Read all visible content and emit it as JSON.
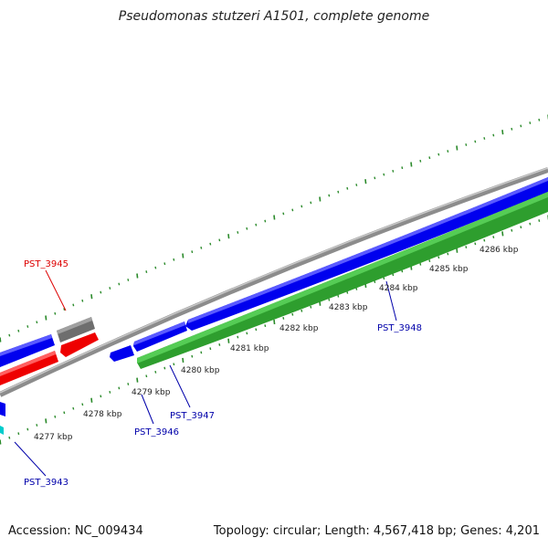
{
  "header": {
    "title": "Pseudomonas stutzeri A1501, complete genome"
  },
  "footer": {
    "accession": "Accession: NC_009434",
    "summary": "Topology: circular; Length: 4,567,418 bp; Genes: 4,201"
  },
  "ruler": {
    "unit": "kbp",
    "labels": [
      "4277 kbp",
      "4278 kbp",
      "4279 kbp",
      "4280 kbp",
      "4281 kbp",
      "4282 kbp",
      "4283 kbp",
      "4284 kbp",
      "4285 kbp",
      "4286 kbp"
    ]
  },
  "gene_labels": [
    {
      "id": "PST_3945",
      "color": "#dd0000"
    },
    {
      "id": "PST_3943",
      "color": "#0000aa"
    },
    {
      "id": "PST_3946",
      "color": "#0000aa"
    },
    {
      "id": "PST_3947",
      "color": "#0000aa"
    },
    {
      "id": "PST_3948",
      "color": "#0000aa"
    }
  ],
  "colors": {
    "forward_cds": "#0000ee",
    "reverse_cds": "#ee0000",
    "gray_feature": "#707070",
    "green_feature": "#33aa33",
    "cyan_feature": "#00cccc",
    "backbone": "#909090",
    "tick": "#2a8a2a"
  }
}
